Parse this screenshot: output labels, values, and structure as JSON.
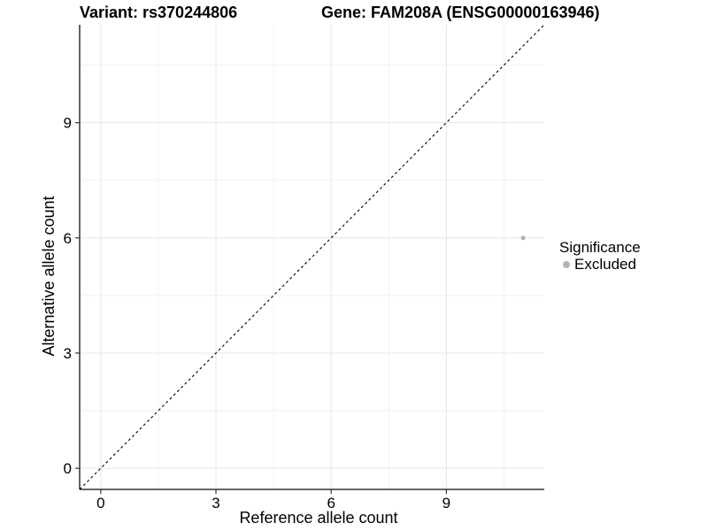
{
  "chart_data": {
    "type": "scatter",
    "title_variant": "Variant: rs370244806",
    "title_gene": "Gene: FAM208A (ENSG00000163946)",
    "xlabel": "Reference allele count",
    "ylabel": "Alternative allele count",
    "xlim": [
      -0.55,
      11.55
    ],
    "ylim": [
      -0.55,
      11.55
    ],
    "x_ticks": [
      0,
      3,
      6,
      9
    ],
    "y_ticks": [
      0,
      3,
      6,
      9
    ],
    "x_minor_ticks": [
      1.5,
      4.5,
      7.5,
      10.5
    ],
    "y_minor_ticks": [
      1.5,
      4.5,
      7.5,
      10.5
    ],
    "grid": "on",
    "identity_line": {
      "style": "dashed",
      "from": [
        -0.55,
        -0.55
      ],
      "to": [
        11.55,
        11.55
      ]
    },
    "points": [
      {
        "x": 11,
        "y": 6,
        "significance": "Excluded"
      }
    ],
    "legend": {
      "title": "Significance",
      "position": "right",
      "items": [
        {
          "label": "Excluded",
          "color": "#b3b3b3"
        }
      ]
    },
    "colors": {
      "point": "#b3b3b3",
      "grid_major": "#e6e6e6",
      "grid_minor": "#f2f2f2",
      "axis": "#333333",
      "diagonal": "#000000",
      "text": "#000000"
    }
  }
}
